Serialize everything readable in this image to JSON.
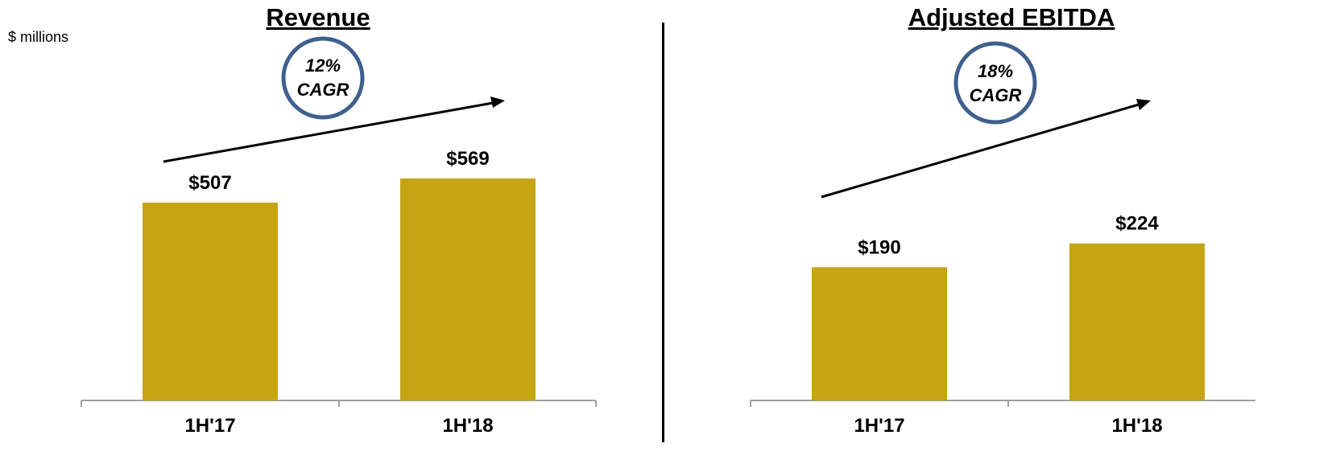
{
  "units_label": "$ millions",
  "chart_data": [
    {
      "type": "bar",
      "title": "Revenue",
      "categories": [
        "1H'17",
        "1H'18"
      ],
      "values": [
        507,
        569
      ],
      "value_labels": [
        "$507",
        "$569"
      ],
      "badge": {
        "line1": "12%",
        "line2": "CAGR"
      },
      "bar_color": "#C6A514",
      "badge_color": "#3F5F8F"
    },
    {
      "type": "bar",
      "title": "Adjusted EBITDA",
      "categories": [
        "1H'17",
        "1H'18"
      ],
      "values": [
        190,
        224
      ],
      "value_labels": [
        "$190",
        "$224"
      ],
      "badge": {
        "line1": "18%",
        "line2": "CAGR"
      },
      "bar_color": "#C6A514",
      "badge_color": "#3F5F8F"
    }
  ]
}
